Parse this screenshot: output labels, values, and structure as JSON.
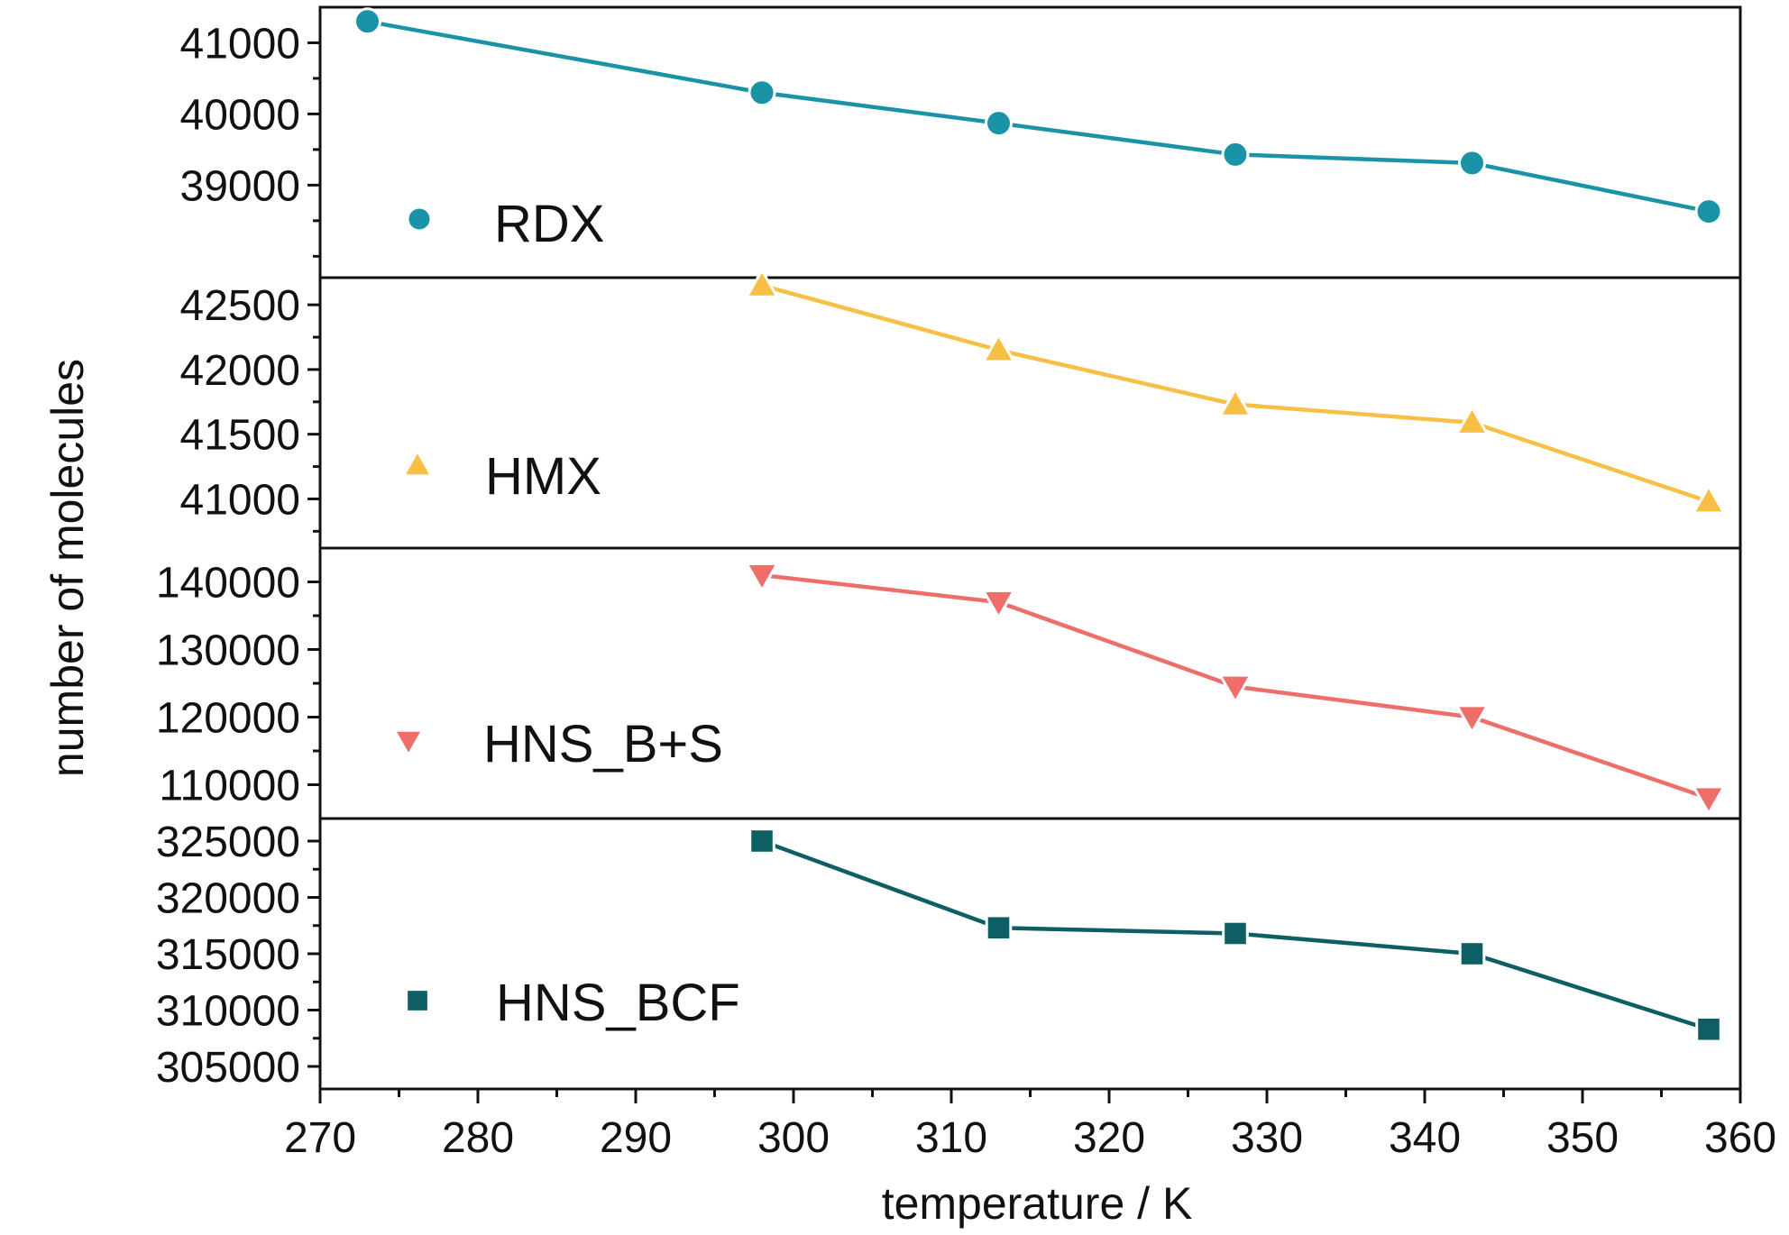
{
  "chart_data": {
    "type": "line",
    "xlabel": "temperature / K",
    "ylabel": "number of molecules",
    "xlim": [
      270,
      360
    ],
    "xticks": [
      270,
      280,
      290,
      300,
      310,
      320,
      330,
      340,
      350,
      360
    ],
    "shared_x": [
      273,
      298,
      313,
      328,
      343,
      358
    ],
    "panels": [
      {
        "name": "RDX",
        "marker": "circle",
        "color": "#1b93a6",
        "ylim": [
          37700,
          41500
        ],
        "yticks": [
          39000,
          40000,
          41000
        ],
        "x": [
          273,
          298,
          313,
          328,
          343,
          358
        ],
        "values": [
          41300,
          40300,
          39870,
          39430,
          39310,
          38630
        ]
      },
      {
        "name": "HMX",
        "marker": "triangle-up",
        "color": "#f7bf45",
        "ylim": [
          40620,
          42710
        ],
        "yticks": [
          41000,
          41500,
          42000,
          42500
        ],
        "x": [
          298,
          313,
          328,
          343,
          358
        ],
        "values": [
          42650,
          42150,
          41730,
          41590,
          40980
        ]
      },
      {
        "name": "HNS_B+S",
        "marker": "triangle-down",
        "color": "#ee6e6a",
        "ylim": [
          105000,
          145000
        ],
        "yticks": [
          110000,
          120000,
          130000,
          140000
        ],
        "x": [
          298,
          313,
          328,
          343,
          358
        ],
        "values": [
          141000,
          137000,
          124500,
          120000,
          108000
        ]
      },
      {
        "name": "HNS_BCF",
        "marker": "square",
        "color": "#0d5f63",
        "ylim": [
          303000,
          327000
        ],
        "yticks": [
          305000,
          310000,
          315000,
          320000,
          325000
        ],
        "x": [
          298,
          313,
          328,
          343,
          358
        ],
        "values": [
          325000,
          317300,
          316800,
          315000,
          308300
        ]
      }
    ]
  }
}
